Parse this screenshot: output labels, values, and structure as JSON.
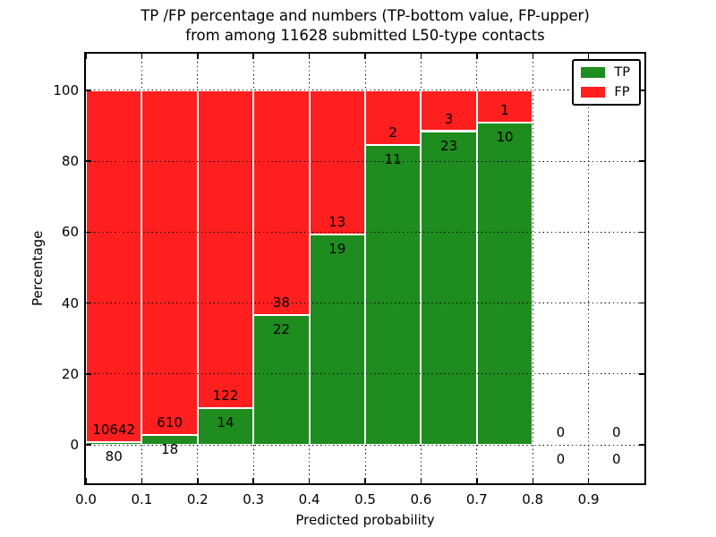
{
  "title": {
    "line1": "TP /FP percentage and numbers (TP-bottom value, FP-upper)",
    "line2": "from among 11628 submitted L50-type contacts"
  },
  "axes": {
    "xlabel": "Predicted probability",
    "ylabel": "Percentage",
    "x_tick_labels": [
      "0.0",
      "0.1",
      "0.2",
      "0.3",
      "0.4",
      "0.5",
      "0.6",
      "0.7",
      "0.8",
      "0.9"
    ],
    "x_tick_values": [
      0.0,
      0.1,
      0.2,
      0.3,
      0.4,
      0.5,
      0.6,
      0.7,
      0.8,
      0.9
    ],
    "y_tick_labels": [
      "0",
      "20",
      "40",
      "60",
      "80",
      "100"
    ],
    "y_tick_values": [
      0,
      20,
      40,
      60,
      80,
      100
    ],
    "grid": "dotted"
  },
  "legend": {
    "position": "upper right",
    "items": [
      {
        "label": "TP",
        "color": "#1e8c1e"
      },
      {
        "label": "FP",
        "color": "#ff1f1f"
      }
    ]
  },
  "colors": {
    "tp": "#1e8c1e",
    "fp": "#ff1f1f",
    "text": "#000000",
    "background": "#ffffff"
  },
  "chart_data": {
    "type": "bar",
    "stacked": true,
    "title": "TP /FP percentage and numbers (TP-bottom value, FP-upper) from among 11628 submitted L50-type contacts",
    "xlabel": "Predicted probability",
    "ylabel": "Percentage",
    "xlim": [
      0.0,
      1.0
    ],
    "ylim": [
      -10.8,
      110.3
    ],
    "total_submitted_contacts": 11628,
    "bin_width": 0.1,
    "bins": [
      {
        "x_start": 0.0,
        "x_end": 0.1,
        "tp_count": 80,
        "fp_count": 10642,
        "tp_percent": 0.75,
        "fp_percent": 99.25
      },
      {
        "x_start": 0.1,
        "x_end": 0.2,
        "tp_count": 18,
        "fp_count": 610,
        "tp_percent": 2.87,
        "fp_percent": 97.13
      },
      {
        "x_start": 0.2,
        "x_end": 0.3,
        "tp_count": 14,
        "fp_count": 122,
        "tp_percent": 10.29,
        "fp_percent": 89.71
      },
      {
        "x_start": 0.3,
        "x_end": 0.4,
        "tp_count": 22,
        "fp_count": 38,
        "tp_percent": 36.67,
        "fp_percent": 63.33
      },
      {
        "x_start": 0.4,
        "x_end": 0.5,
        "tp_count": 19,
        "fp_count": 13,
        "tp_percent": 59.38,
        "fp_percent": 40.62
      },
      {
        "x_start": 0.5,
        "x_end": 0.6,
        "tp_count": 11,
        "fp_count": 2,
        "tp_percent": 84.62,
        "fp_percent": 15.38
      },
      {
        "x_start": 0.6,
        "x_end": 0.7,
        "tp_count": 23,
        "fp_count": 3,
        "tp_percent": 88.46,
        "fp_percent": 11.54
      },
      {
        "x_start": 0.7,
        "x_end": 0.8,
        "tp_count": 10,
        "fp_count": 1,
        "tp_percent": 90.91,
        "fp_percent": 9.09
      },
      {
        "x_start": 0.8,
        "x_end": 0.9,
        "tp_count": 0,
        "fp_count": 0,
        "tp_percent": 0,
        "fp_percent": 0
      },
      {
        "x_start": 0.9,
        "x_end": 1.0,
        "tp_count": 0,
        "fp_count": 0,
        "tp_percent": 0,
        "fp_percent": 0
      }
    ]
  }
}
